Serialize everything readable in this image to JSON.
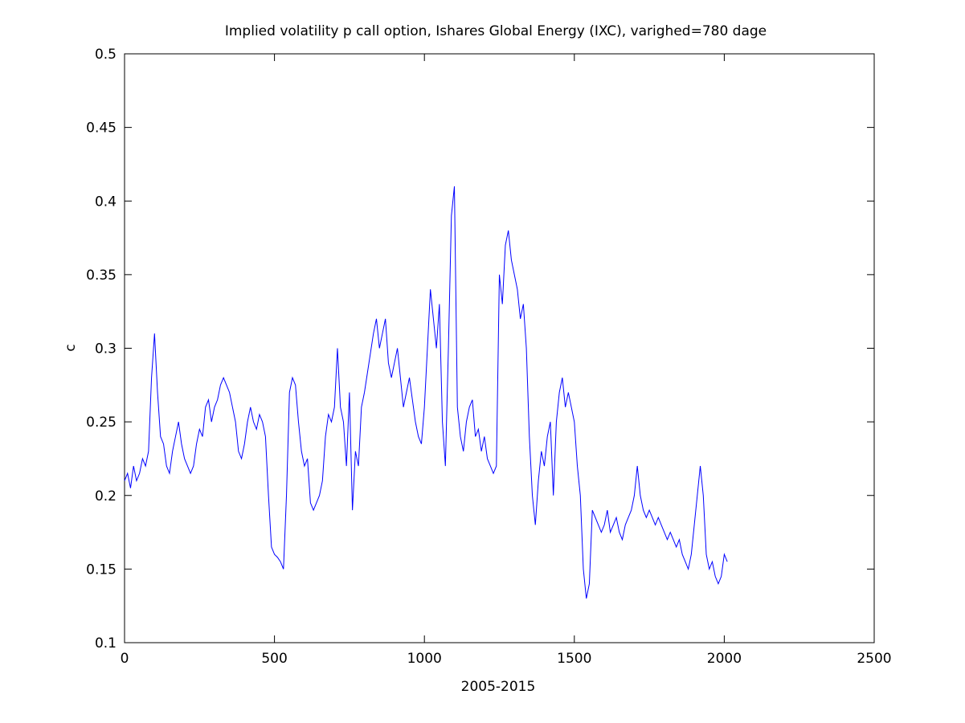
{
  "chart_data": {
    "type": "line",
    "title": "Implied volatility p call option, Ishares Global Energy (IXC), varighed=780 dage",
    "x_label": "2005-2015",
    "y_label": "c",
    "xlim": [
      0,
      2500
    ],
    "xticks": [
      0,
      500,
      1000,
      1500,
      2000,
      2500
    ],
    "ylim": [
      0.1,
      0.5
    ],
    "yticks": [
      0.1,
      0.15,
      0.2,
      0.25,
      0.3,
      0.35,
      0.4,
      0.45,
      0.5
    ],
    "grid": false,
    "series": [
      {
        "color": "#0000ff",
        "x": [
          0,
          10,
          20,
          30,
          40,
          50,
          60,
          70,
          80,
          90,
          100,
          110,
          120,
          130,
          140,
          150,
          160,
          170,
          180,
          190,
          200,
          210,
          220,
          230,
          240,
          250,
          260,
          270,
          280,
          290,
          300,
          310,
          320,
          330,
          340,
          350,
          360,
          370,
          380,
          390,
          400,
          410,
          420,
          430,
          440,
          450,
          460,
          470,
          480,
          490,
          500,
          510,
          520,
          530,
          540,
          550,
          560,
          570,
          580,
          590,
          600,
          610,
          620,
          630,
          640,
          650,
          660,
          670,
          680,
          690,
          700,
          710,
          720,
          730,
          740,
          750,
          760,
          770,
          780,
          790,
          800,
          830,
          840,
          850,
          860,
          870,
          880,
          890,
          900,
          910,
          920,
          930,
          940,
          950,
          960,
          970,
          980,
          990,
          1000,
          1010,
          1020,
          1030,
          1040,
          1050,
          1060,
          1070,
          1080,
          1090,
          1100,
          1110,
          1120,
          1130,
          1140,
          1150,
          1160,
          1170,
          1180,
          1190,
          1200,
          1210,
          1220,
          1230,
          1240,
          1250,
          1260,
          1270,
          1280,
          1290,
          1300,
          1310,
          1320,
          1330,
          1340,
          1350,
          1360,
          1370,
          1380,
          1390,
          1400,
          1410,
          1420,
          1430,
          1440,
          1450,
          1460,
          1470,
          1480,
          1490,
          1500,
          1510,
          1520,
          1530,
          1540,
          1550,
          1560,
          1570,
          1580,
          1590,
          1600,
          1610,
          1620,
          1630,
          1640,
          1650,
          1660,
          1670,
          1680,
          1690,
          1700,
          1710,
          1720,
          1730,
          1740,
          1750,
          1760,
          1770,
          1780,
          1790,
          1800,
          1810,
          1820,
          1830,
          1840,
          1850,
          1860,
          1870,
          1880,
          1890,
          1900,
          1910,
          1920,
          1930,
          1940,
          1950,
          1960,
          1970,
          1980,
          1990,
          2000,
          2010
        ],
        "values": [
          0.21,
          0.215,
          0.205,
          0.22,
          0.21,
          0.215,
          0.225,
          0.22,
          0.23,
          0.28,
          0.31,
          0.27,
          0.24,
          0.235,
          0.22,
          0.215,
          0.23,
          0.24,
          0.25,
          0.235,
          0.225,
          0.22,
          0.215,
          0.22,
          0.235,
          0.245,
          0.24,
          0.26,
          0.265,
          0.25,
          0.26,
          0.265,
          0.275,
          0.28,
          0.275,
          0.27,
          0.26,
          0.25,
          0.23,
          0.225,
          0.235,
          0.25,
          0.26,
          0.25,
          0.245,
          0.255,
          0.25,
          0.24,
          0.2,
          0.165,
          0.16,
          0.158,
          0.155,
          0.15,
          0.2,
          0.27,
          0.28,
          0.275,
          0.25,
          0.23,
          0.22,
          0.225,
          0.195,
          0.19,
          0.195,
          0.2,
          0.21,
          0.24,
          0.255,
          0.25,
          0.26,
          0.3,
          0.26,
          0.25,
          0.22,
          0.27,
          0.19,
          0.23,
          0.22,
          0.26,
          0.27,
          0.31,
          0.32,
          0.3,
          0.31,
          0.32,
          0.29,
          0.28,
          0.29,
          0.3,
          0.28,
          0.26,
          0.27,
          0.28,
          0.265,
          0.25,
          0.24,
          0.235,
          0.26,
          0.3,
          0.34,
          0.32,
          0.3,
          0.33,
          0.25,
          0.22,
          0.3,
          0.39,
          0.41,
          0.26,
          0.24,
          0.23,
          0.25,
          0.26,
          0.265,
          0.24,
          0.245,
          0.23,
          0.24,
          0.225,
          0.22,
          0.215,
          0.22,
          0.35,
          0.33,
          0.37,
          0.38,
          0.36,
          0.35,
          0.34,
          0.32,
          0.33,
          0.3,
          0.24,
          0.2,
          0.18,
          0.21,
          0.23,
          0.22,
          0.24,
          0.25,
          0.2,
          0.25,
          0.27,
          0.28,
          0.26,
          0.27,
          0.26,
          0.25,
          0.22,
          0.2,
          0.15,
          0.13,
          0.14,
          0.19,
          0.185,
          0.18,
          0.175,
          0.18,
          0.19,
          0.175,
          0.18,
          0.185,
          0.175,
          0.17,
          0.18,
          0.185,
          0.19,
          0.2,
          0.22,
          0.2,
          0.19,
          0.185,
          0.19,
          0.185,
          0.18,
          0.185,
          0.18,
          0.175,
          0.17,
          0.175,
          0.17,
          0.165,
          0.17,
          0.16,
          0.155,
          0.15,
          0.16,
          0.18,
          0.2,
          0.22,
          0.2,
          0.16,
          0.15,
          0.155,
          0.145,
          0.14,
          0.145,
          0.16,
          0.155
        ]
      }
    ]
  }
}
